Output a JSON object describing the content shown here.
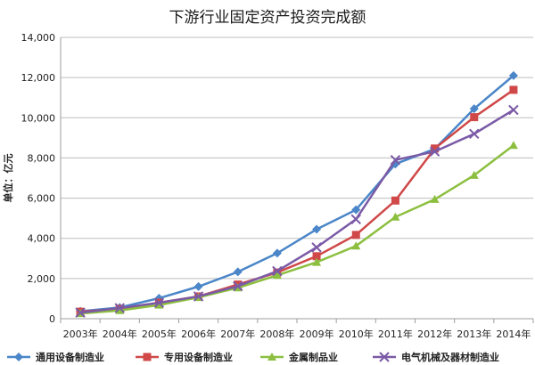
{
  "chart_data": {
    "type": "line",
    "title": "下游行业固定资产投资完成额",
    "ylabel": "单位：亿元",
    "xlabel": "",
    "categories": [
      "2003年",
      "2004年",
      "2005年",
      "2006年",
      "2007年",
      "2008年",
      "2009年",
      "2010年",
      "2011年",
      "2012年",
      "2013年",
      "2014年"
    ],
    "y_ticks": [
      "0",
      "2,000",
      "4,000",
      "6,000",
      "8,000",
      "10,000",
      "12,000",
      "14,000"
    ],
    "ylim": [
      0,
      14000
    ],
    "grid": true,
    "legend_position": "bottom",
    "series": [
      {
        "name": "通用设备制造业",
        "color": "#4a86c8",
        "marker": "diamond",
        "values": [
          370,
          560,
          1020,
          1600,
          2330,
          3260,
          4450,
          5420,
          7700,
          8450,
          10450,
          12100
        ]
      },
      {
        "name": "专用设备制造业",
        "color": "#d04848",
        "marker": "square",
        "values": [
          350,
          490,
          800,
          1110,
          1700,
          2300,
          3110,
          4170,
          5880,
          8470,
          10030,
          11390
        ]
      },
      {
        "name": "金属制品业",
        "color": "#8cbf3f",
        "marker": "triangle",
        "values": [
          260,
          410,
          680,
          1060,
          1540,
          2160,
          2810,
          3620,
          5060,
          5940,
          7140,
          8630
        ]
      },
      {
        "name": "电气机械及器材制造业",
        "color": "#7a5aa6",
        "marker": "x",
        "values": [
          300,
          530,
          790,
          1110,
          1620,
          2370,
          3550,
          4950,
          7900,
          8320,
          9200,
          10390
        ]
      }
    ]
  }
}
